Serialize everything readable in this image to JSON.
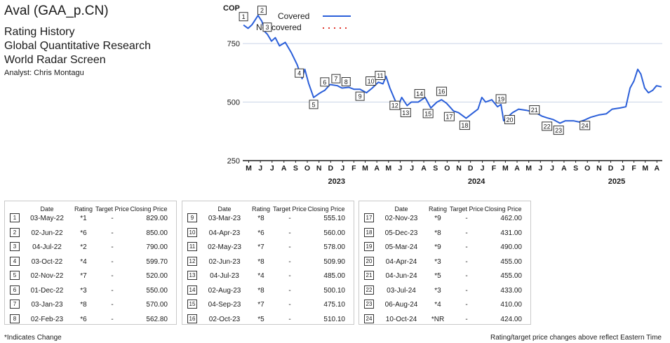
{
  "header": {
    "title": "Aval (GAA_p.CN)",
    "lines": [
      "Rating History",
      "Global Quantitative Research",
      "World Radar Screen"
    ],
    "analyst": "Analyst: Chris Montagu"
  },
  "colors": {
    "covered": "#2b5fd9",
    "not_covered": "#e0362c",
    "grid": "#c9d3e6",
    "axis": "#1a1a1a"
  },
  "chart_data": {
    "type": "line",
    "ylabel": "COP",
    "ylim": [
      250,
      900
    ],
    "yticks": [
      250,
      500,
      750
    ],
    "xlim": [
      "2022-05-01",
      "2025-04-30"
    ],
    "month_ticks": [
      "M",
      "J",
      "J",
      "A",
      "S",
      "O",
      "N",
      "D",
      "J",
      "F",
      "M",
      "A",
      "M",
      "J",
      "J",
      "A",
      "S",
      "O",
      "N",
      "D",
      "J",
      "F",
      "M",
      "A",
      "M",
      "J",
      "J",
      "A",
      "S",
      "O",
      "N",
      "D",
      "J",
      "F",
      "M",
      "A"
    ],
    "year_labels": [
      {
        "label": "2023",
        "date": "2023-01-01"
      },
      {
        "label": "2024",
        "date": "2024-01-01"
      },
      {
        "label": "2025",
        "date": "2025-01-01"
      }
    ],
    "legend": {
      "position": "top-left",
      "entries": [
        "Covered",
        "Not covered"
      ]
    },
    "series": [
      {
        "name": "Covered",
        "style": "solid",
        "points": [
          [
            "2022-05-03",
            829
          ],
          [
            "2022-05-15",
            815
          ],
          [
            "2022-05-25",
            830
          ],
          [
            "2022-06-02",
            850
          ],
          [
            "2022-06-10",
            870
          ],
          [
            "2022-06-20",
            845
          ],
          [
            "2022-06-28",
            800
          ],
          [
            "2022-07-04",
            790
          ],
          [
            "2022-07-15",
            760
          ],
          [
            "2022-07-25",
            775
          ],
          [
            "2022-08-05",
            740
          ],
          [
            "2022-08-20",
            755
          ],
          [
            "2022-09-05",
            710
          ],
          [
            "2022-09-20",
            660
          ],
          [
            "2022-10-03",
            600
          ],
          [
            "2022-10-10",
            640
          ],
          [
            "2022-10-20",
            580
          ],
          [
            "2022-11-02",
            520
          ],
          [
            "2022-11-15",
            535
          ],
          [
            "2022-11-25",
            545
          ],
          [
            "2022-12-01",
            550
          ],
          [
            "2022-12-15",
            575
          ],
          [
            "2023-01-03",
            570
          ],
          [
            "2023-01-15",
            560
          ],
          [
            "2023-02-02",
            563
          ],
          [
            "2023-02-15",
            555
          ],
          [
            "2023-03-03",
            555
          ],
          [
            "2023-03-20",
            540
          ],
          [
            "2023-04-04",
            560
          ],
          [
            "2023-04-20",
            585
          ],
          [
            "2023-05-02",
            578
          ],
          [
            "2023-05-10",
            610
          ],
          [
            "2023-05-20",
            560
          ],
          [
            "2023-06-02",
            510
          ],
          [
            "2023-06-10",
            480
          ],
          [
            "2023-06-20",
            520
          ],
          [
            "2023-07-04",
            485
          ],
          [
            "2023-07-15",
            500
          ],
          [
            "2023-08-02",
            500
          ],
          [
            "2023-08-20",
            520
          ],
          [
            "2023-09-04",
            475
          ],
          [
            "2023-09-20",
            500
          ],
          [
            "2023-10-02",
            510
          ],
          [
            "2023-10-15",
            495
          ],
          [
            "2023-11-02",
            462
          ],
          [
            "2023-11-15",
            455
          ],
          [
            "2023-12-05",
            431
          ],
          [
            "2023-12-20",
            450
          ],
          [
            "2024-01-05",
            470
          ],
          [
            "2024-01-15",
            520
          ],
          [
            "2024-01-25",
            500
          ],
          [
            "2024-02-10",
            510
          ],
          [
            "2024-02-25",
            480
          ],
          [
            "2024-03-05",
            490
          ],
          [
            "2024-03-12",
            420
          ],
          [
            "2024-03-25",
            440
          ],
          [
            "2024-04-04",
            455
          ],
          [
            "2024-04-20",
            470
          ],
          [
            "2024-05-10",
            465
          ],
          [
            "2024-06-04",
            455
          ],
          [
            "2024-06-20",
            440
          ],
          [
            "2024-07-03",
            433
          ],
          [
            "2024-07-20",
            425
          ],
          [
            "2024-08-06",
            410
          ],
          [
            "2024-08-20",
            420
          ],
          [
            "2024-09-10",
            420
          ],
          [
            "2024-09-25",
            415
          ],
          [
            "2024-10-10",
            424
          ],
          [
            "2024-10-25",
            435
          ],
          [
            "2024-11-15",
            445
          ],
          [
            "2024-12-05",
            450
          ],
          [
            "2024-12-20",
            470
          ],
          [
            "2025-01-10",
            475
          ],
          [
            "2025-01-25",
            480
          ],
          [
            "2025-02-05",
            560
          ],
          [
            "2025-02-15",
            590
          ],
          [
            "2025-02-25",
            640
          ],
          [
            "2025-03-05",
            620
          ],
          [
            "2025-03-15",
            560
          ],
          [
            "2025-03-25",
            540
          ],
          [
            "2025-04-05",
            550
          ],
          [
            "2025-04-15",
            570
          ],
          [
            "2025-04-28",
            565
          ]
        ]
      },
      {
        "name": "Not covered",
        "style": "dotted",
        "points": []
      }
    ],
    "markers": [
      {
        "n": "1",
        "date": "2022-05-03",
        "value": 829
      },
      {
        "n": "2",
        "date": "2022-06-02",
        "value": 850
      },
      {
        "n": "3",
        "date": "2022-07-04",
        "value": 790
      },
      {
        "n": "4",
        "date": "2022-10-03",
        "value": 600
      },
      {
        "n": "5",
        "date": "2022-11-02",
        "value": 520
      },
      {
        "n": "6",
        "date": "2022-12-01",
        "value": 550
      },
      {
        "n": "7",
        "date": "2023-01-03",
        "value": 570
      },
      {
        "n": "8",
        "date": "2023-02-02",
        "value": 563
      },
      {
        "n": "9",
        "date": "2023-03-03",
        "value": 555
      },
      {
        "n": "10",
        "date": "2023-04-04",
        "value": 560
      },
      {
        "n": "11",
        "date": "2023-05-02",
        "value": 578
      },
      {
        "n": "12",
        "date": "2023-06-02",
        "value": 510
      },
      {
        "n": "13",
        "date": "2023-07-04",
        "value": 485
      },
      {
        "n": "14",
        "date": "2023-08-02",
        "value": 500
      },
      {
        "n": "15",
        "date": "2023-09-04",
        "value": 475
      },
      {
        "n": "16",
        "date": "2023-10-02",
        "value": 510
      },
      {
        "n": "17",
        "date": "2023-11-02",
        "value": 462
      },
      {
        "n": "18",
        "date": "2023-12-05",
        "value": 431
      },
      {
        "n": "19",
        "date": "2024-03-05",
        "value": 490
      },
      {
        "n": "20",
        "date": "2024-04-04",
        "value": 455
      },
      {
        "n": "21",
        "date": "2024-06-04",
        "value": 455
      },
      {
        "n": "22",
        "date": "2024-07-03",
        "value": 433
      },
      {
        "n": "23",
        "date": "2024-08-06",
        "value": 410
      },
      {
        "n": "24",
        "date": "2024-10-10",
        "value": 424
      }
    ]
  },
  "table": {
    "headers": {
      "date": "Date",
      "rating": "Rating",
      "target": "Target Price",
      "close": "Closing Price"
    },
    "columns": [
      [
        {
          "n": "1",
          "date": "03-May-22",
          "rating": "*1",
          "target": "-",
          "close": "829.00"
        },
        {
          "n": "2",
          "date": "02-Jun-22",
          "rating": "*6",
          "target": "-",
          "close": "850.00"
        },
        {
          "n": "3",
          "date": "04-Jul-22",
          "rating": "*2",
          "target": "-",
          "close": "790.00"
        },
        {
          "n": "4",
          "date": "03-Oct-22",
          "rating": "*4",
          "target": "-",
          "close": "599.70"
        },
        {
          "n": "5",
          "date": "02-Nov-22",
          "rating": "*7",
          "target": "-",
          "close": "520.00"
        },
        {
          "n": "6",
          "date": "01-Dec-22",
          "rating": "*3",
          "target": "-",
          "close": "550.00"
        },
        {
          "n": "7",
          "date": "03-Jan-23",
          "rating": "*8",
          "target": "-",
          "close": "570.00"
        },
        {
          "n": "8",
          "date": "02-Feb-23",
          "rating": "*6",
          "target": "-",
          "close": "562.80"
        }
      ],
      [
        {
          "n": "9",
          "date": "03-Mar-23",
          "rating": "*8",
          "target": "-",
          "close": "555.10"
        },
        {
          "n": "10",
          "date": "04-Apr-23",
          "rating": "*6",
          "target": "-",
          "close": "560.00"
        },
        {
          "n": "11",
          "date": "02-May-23",
          "rating": "*7",
          "target": "-",
          "close": "578.00"
        },
        {
          "n": "12",
          "date": "02-Jun-23",
          "rating": "*8",
          "target": "-",
          "close": "509.90"
        },
        {
          "n": "13",
          "date": "04-Jul-23",
          "rating": "*4",
          "target": "-",
          "close": "485.00"
        },
        {
          "n": "14",
          "date": "02-Aug-23",
          "rating": "*8",
          "target": "-",
          "close": "500.10"
        },
        {
          "n": "15",
          "date": "04-Sep-23",
          "rating": "*7",
          "target": "-",
          "close": "475.10"
        },
        {
          "n": "16",
          "date": "02-Oct-23",
          "rating": "*5",
          "target": "-",
          "close": "510.10"
        }
      ],
      [
        {
          "n": "17",
          "date": "02-Nov-23",
          "rating": "*9",
          "target": "-",
          "close": "462.00"
        },
        {
          "n": "18",
          "date": "05-Dec-23",
          "rating": "*8",
          "target": "-",
          "close": "431.00"
        },
        {
          "n": "19",
          "date": "05-Mar-24",
          "rating": "*9",
          "target": "-",
          "close": "490.00"
        },
        {
          "n": "20",
          "date": "04-Apr-24",
          "rating": "*3",
          "target": "-",
          "close": "455.00"
        },
        {
          "n": "21",
          "date": "04-Jun-24",
          "rating": "*5",
          "target": "-",
          "close": "455.00"
        },
        {
          "n": "22",
          "date": "03-Jul-24",
          "rating": "*3",
          "target": "-",
          "close": "433.00"
        },
        {
          "n": "23",
          "date": "06-Aug-24",
          "rating": "*4",
          "target": "-",
          "close": "410.00"
        },
        {
          "n": "24",
          "date": "10-Oct-24",
          "rating": "*NR",
          "target": "-",
          "close": "424.00"
        }
      ]
    ]
  },
  "footnotes": {
    "left": "*Indicates Change",
    "right": "Rating/target price changes above reflect Eastern Time"
  }
}
